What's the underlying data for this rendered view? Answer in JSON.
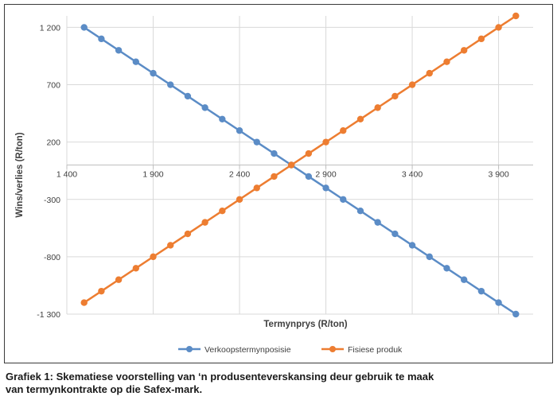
{
  "caption": {
    "line1": "Grafiek 1: Skematiese voorstelling van ‘n produsenteverskansing deur gebruik te maak",
    "line2": "van termynkontrakte op die Safex-mark."
  },
  "colors": {
    "series1": "#5b8cc6",
    "series2": "#ed7d31",
    "grid": "#d9d9d9",
    "axis": "#bfbfbf",
    "text": "#404040"
  },
  "chart_data": {
    "type": "line",
    "title": "",
    "xlabel": "Termynprys (R/ton)",
    "ylabel": "Wins/verlies (R/ton)",
    "xlim": [
      1400,
      4100
    ],
    "ylim": [
      -1300,
      1300
    ],
    "x_ticks": [
      1400,
      1900,
      2400,
      2900,
      3400,
      3900
    ],
    "x_tick_labels": [
      "1 400",
      "1 900",
      "2 400",
      "2 900",
      "3 400",
      "3 900"
    ],
    "y_ticks": [
      1200,
      700,
      200,
      -300,
      -800,
      -1300
    ],
    "y_tick_labels": [
      "1 200",
      "700",
      "200",
      "-300",
      "-800",
      "-1 300"
    ],
    "grid": true,
    "legend_position": "bottom",
    "x": [
      1500,
      1600,
      1700,
      1800,
      1900,
      2000,
      2100,
      2200,
      2300,
      2400,
      2500,
      2600,
      2700,
      2800,
      2900,
      3000,
      3100,
      3200,
      3300,
      3400,
      3500,
      3600,
      3700,
      3800,
      3900,
      4000
    ],
    "series": [
      {
        "name": "Verkoopstermynposisie",
        "values": [
          1200,
          1100,
          1000,
          900,
          800,
          700,
          600,
          500,
          400,
          300,
          200,
          100,
          0,
          -100,
          -200,
          -300,
          -400,
          -500,
          -600,
          -700,
          -800,
          -900,
          -1000,
          -1100,
          -1200,
          -1300
        ]
      },
      {
        "name": "Fisiese produk",
        "values": [
          -1200,
          -1100,
          -1000,
          -900,
          -800,
          -700,
          -600,
          -500,
          -400,
          -300,
          -200,
          -100,
          0,
          100,
          200,
          300,
          400,
          500,
          600,
          700,
          800,
          900,
          1000,
          1100,
          1200,
          1300
        ]
      }
    ]
  }
}
